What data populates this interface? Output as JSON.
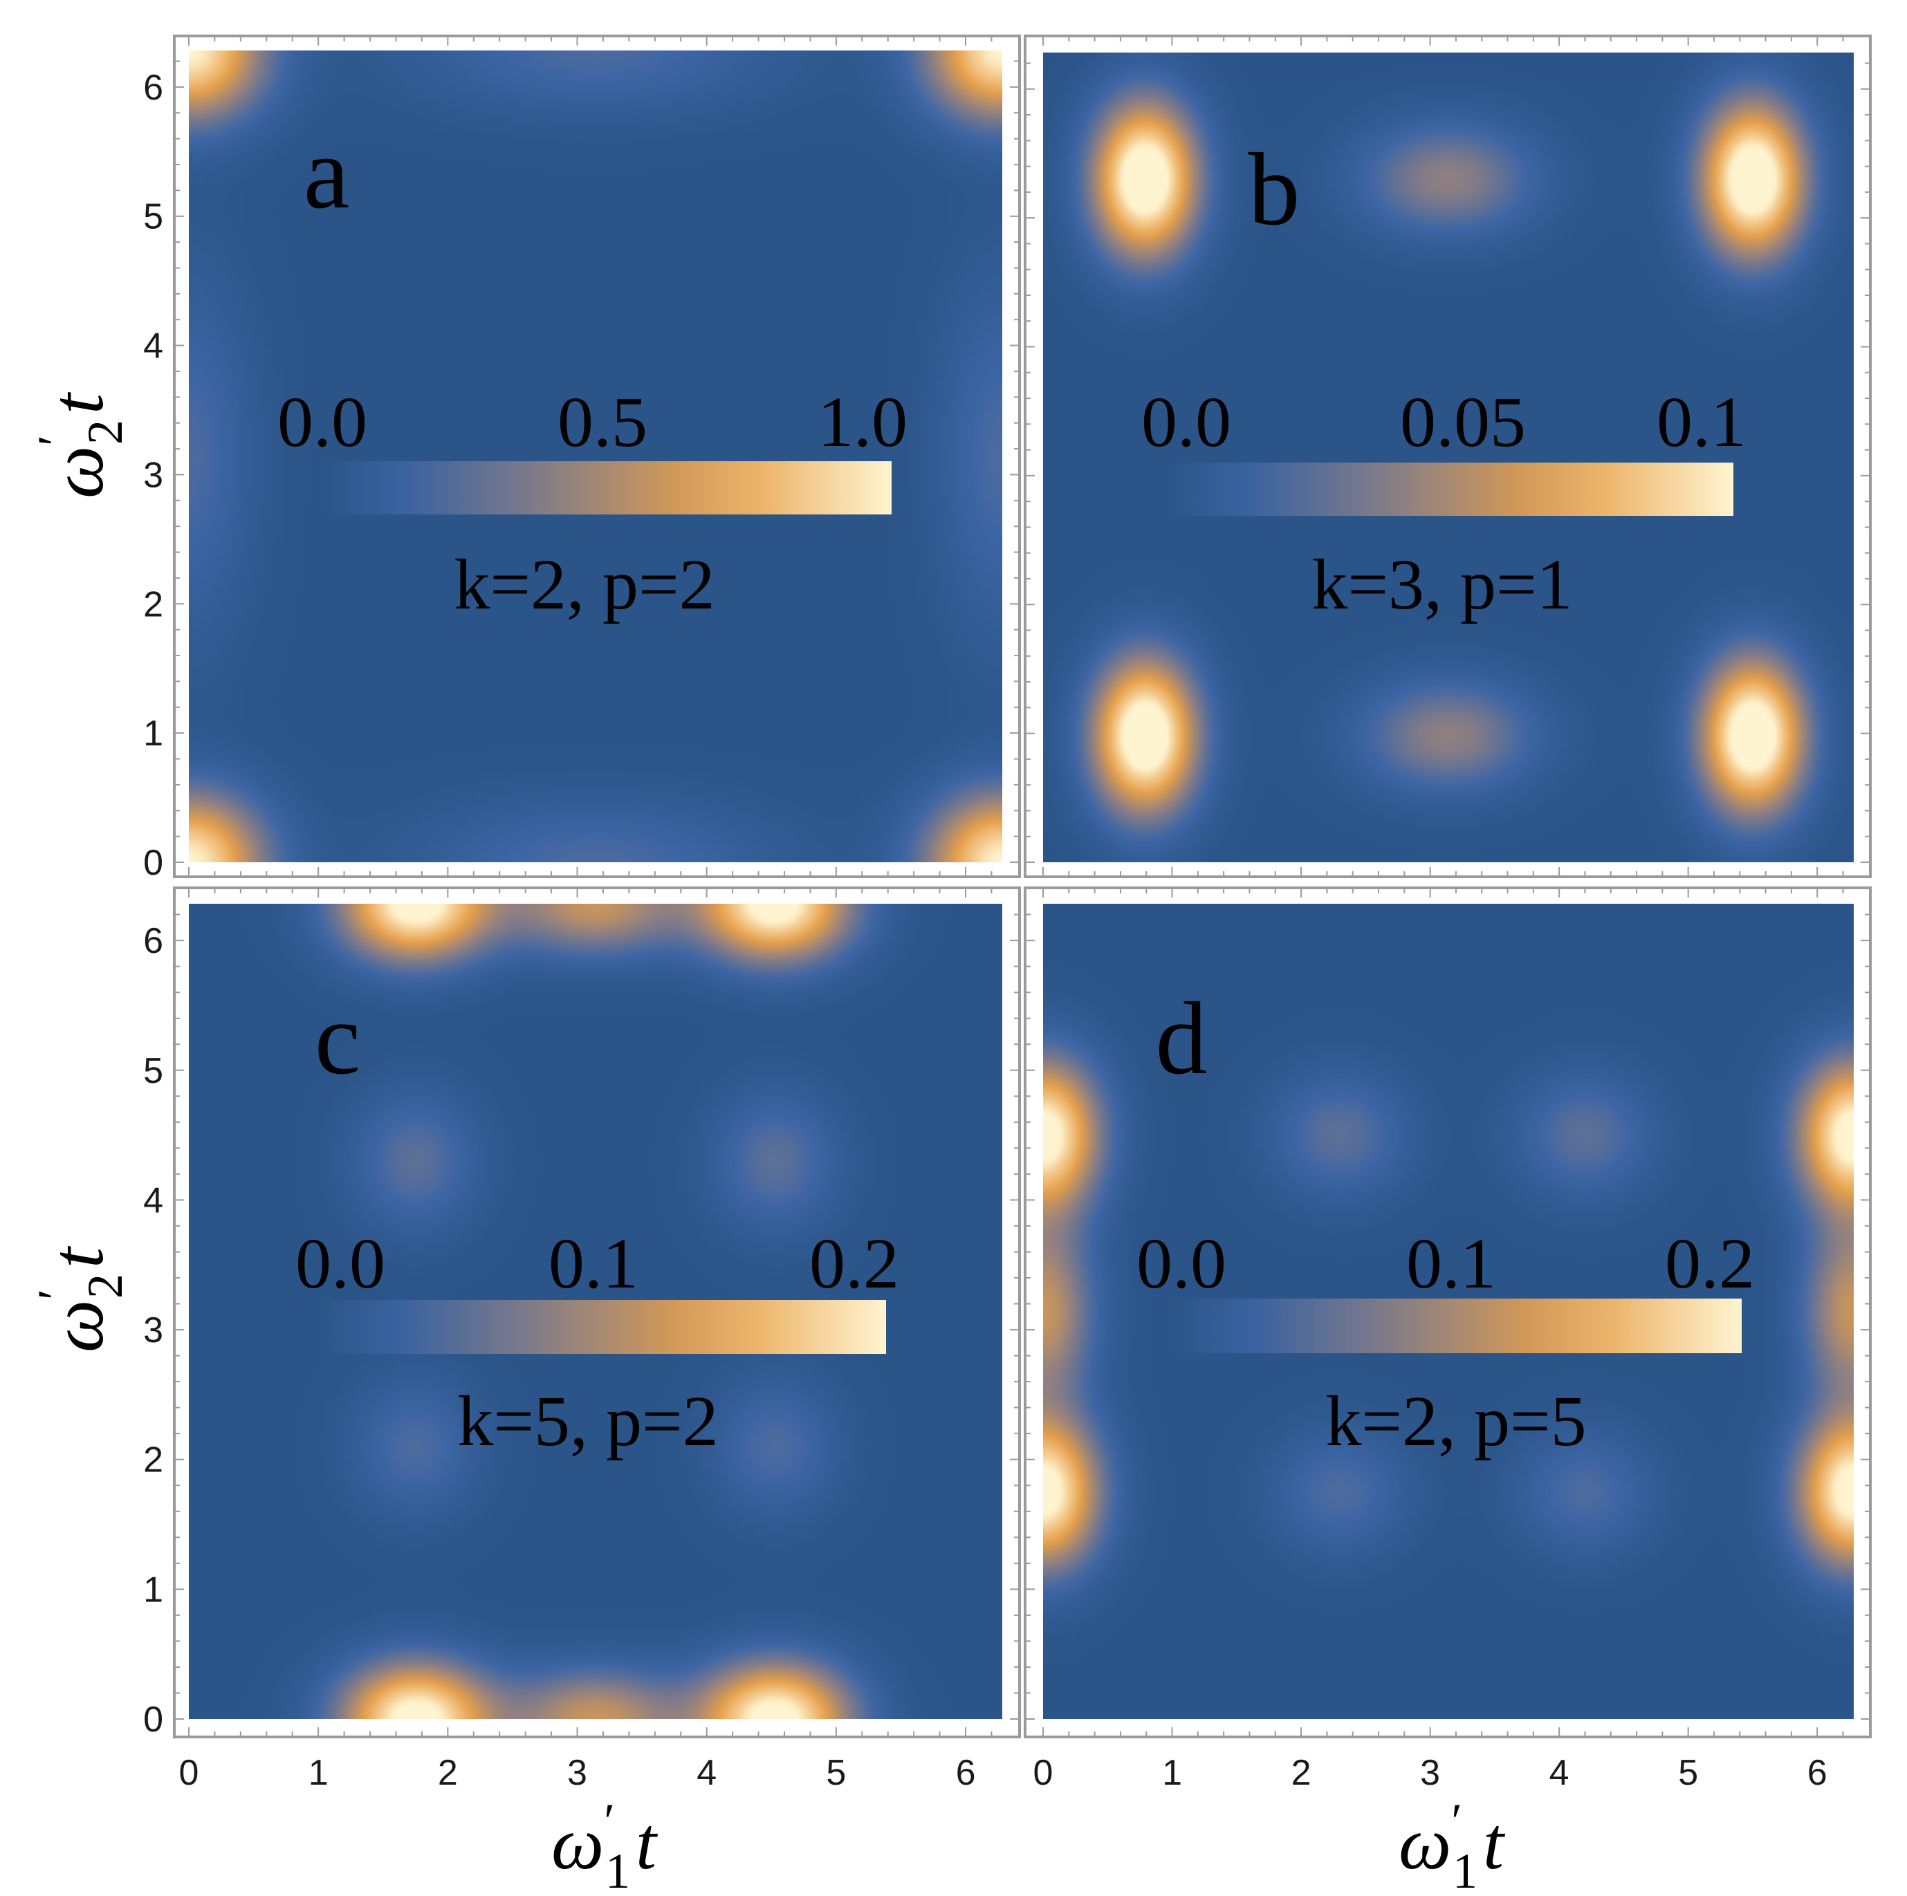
{
  "figure": {
    "x_label": {
      "symbol": "ω",
      "prime": "′",
      "subscript": "1",
      "var": "t"
    },
    "y_label": {
      "symbol": "ω",
      "prime": "′",
      "subscript": "2",
      "var": "t"
    },
    "x_ticks": [
      "0",
      "1",
      "2",
      "3",
      "4",
      "5",
      "6"
    ],
    "y_ticks": [
      "0",
      "1",
      "2",
      "3",
      "4",
      "5",
      "6"
    ],
    "colors": {
      "low": "#2b5589",
      "mid": "#e6a14f",
      "high": "#fff3cc",
      "frame": "#9a9a9a"
    }
  },
  "chart_data": [
    {
      "type": "heatmap",
      "panel": "a",
      "params": "k=2, p=2",
      "colorbar_ticks": [
        "0.0",
        "0.5",
        "1.0"
      ],
      "colorbar_range": [
        0,
        1.0
      ],
      "xlim": [
        0,
        6.283
      ],
      "ylim": [
        0,
        6.283
      ],
      "features": [
        {
          "x": 0.0,
          "y": 6.28,
          "peak": 1.0,
          "sx": 0.6,
          "sy": 0.55
        },
        {
          "x": 6.28,
          "y": 6.28,
          "peak": 1.0,
          "sx": 0.6,
          "sy": 0.55
        },
        {
          "x": 0.0,
          "y": 0.0,
          "peak": 1.0,
          "sx": 0.6,
          "sy": 0.55
        },
        {
          "x": 6.28,
          "y": 0.0,
          "peak": 1.0,
          "sx": 0.6,
          "sy": 0.55
        },
        {
          "x": 3.14,
          "y": 6.28,
          "peak": 0.22,
          "sx": 1.4,
          "sy": 0.5
        },
        {
          "x": 3.14,
          "y": 0.0,
          "peak": 0.22,
          "sx": 1.4,
          "sy": 0.5
        },
        {
          "x": 0.0,
          "y": 3.14,
          "peak": 0.22,
          "sx": 0.5,
          "sy": 1.4
        },
        {
          "x": 6.28,
          "y": 3.14,
          "peak": 0.22,
          "sx": 0.5,
          "sy": 1.4
        }
      ]
    },
    {
      "type": "heatmap",
      "panel": "b",
      "params": "k=3, p=1",
      "colorbar_ticks": [
        "0.0",
        "0.05",
        "0.1"
      ],
      "colorbar_range": [
        0,
        0.1
      ],
      "xlim": [
        0,
        6.283
      ],
      "ylim": [
        0,
        6.283
      ],
      "features": [
        {
          "x": 0.79,
          "y": 5.3,
          "peak": 0.12,
          "sx": 0.42,
          "sy": 0.62
        },
        {
          "x": 5.5,
          "y": 5.3,
          "peak": 0.12,
          "sx": 0.42,
          "sy": 0.62
        },
        {
          "x": 0.79,
          "y": 0.98,
          "peak": 0.12,
          "sx": 0.42,
          "sy": 0.62
        },
        {
          "x": 5.5,
          "y": 0.98,
          "peak": 0.12,
          "sx": 0.42,
          "sy": 0.62
        },
        {
          "x": 3.14,
          "y": 5.3,
          "peak": 0.042,
          "sx": 0.7,
          "sy": 0.45
        },
        {
          "x": 3.14,
          "y": 0.98,
          "peak": 0.042,
          "sx": 0.7,
          "sy": 0.45
        }
      ]
    },
    {
      "type": "heatmap",
      "panel": "c",
      "params": "k=5, p=2",
      "colorbar_ticks": [
        "0.0",
        "0.1",
        "0.2"
      ],
      "colorbar_range": [
        0,
        0.22
      ],
      "xlim": [
        0,
        6.283
      ],
      "ylim": [
        0,
        6.283
      ],
      "features": [
        {
          "x": 1.75,
          "y": 6.28,
          "peak": 0.24,
          "sx": 0.6,
          "sy": 0.45
        },
        {
          "x": 4.53,
          "y": 6.28,
          "peak": 0.24,
          "sx": 0.6,
          "sy": 0.45
        },
        {
          "x": 3.14,
          "y": 6.28,
          "peak": 0.13,
          "sx": 0.7,
          "sy": 0.4
        },
        {
          "x": 1.75,
          "y": 0.0,
          "peak": 0.24,
          "sx": 0.6,
          "sy": 0.45
        },
        {
          "x": 4.53,
          "y": 0.0,
          "peak": 0.24,
          "sx": 0.6,
          "sy": 0.45
        },
        {
          "x": 3.14,
          "y": 0.0,
          "peak": 0.13,
          "sx": 0.7,
          "sy": 0.4
        },
        {
          "x": 1.75,
          "y": 4.3,
          "peak": 0.06,
          "sx": 0.5,
          "sy": 0.55
        },
        {
          "x": 4.53,
          "y": 4.3,
          "peak": 0.06,
          "sx": 0.5,
          "sy": 0.55
        },
        {
          "x": 1.75,
          "y": 2.1,
          "peak": 0.05,
          "sx": 0.5,
          "sy": 0.55
        },
        {
          "x": 4.53,
          "y": 2.1,
          "peak": 0.05,
          "sx": 0.5,
          "sy": 0.55
        }
      ]
    },
    {
      "type": "heatmap",
      "panel": "d",
      "params": "k=2, p=5",
      "colorbar_ticks": [
        "0.0",
        "0.1",
        "0.2"
      ],
      "colorbar_range": [
        0,
        0.22
      ],
      "xlim": [
        0,
        6.283
      ],
      "ylim": [
        0,
        6.283
      ],
      "features": [
        {
          "x": 0.0,
          "y": 4.5,
          "peak": 0.24,
          "sx": 0.45,
          "sy": 0.6
        },
        {
          "x": 0.0,
          "y": 1.75,
          "peak": 0.24,
          "sx": 0.45,
          "sy": 0.6
        },
        {
          "x": 0.0,
          "y": 3.14,
          "peak": 0.13,
          "sx": 0.4,
          "sy": 0.7
        },
        {
          "x": 6.28,
          "y": 4.5,
          "peak": 0.24,
          "sx": 0.45,
          "sy": 0.6
        },
        {
          "x": 6.28,
          "y": 1.75,
          "peak": 0.24,
          "sx": 0.45,
          "sy": 0.6
        },
        {
          "x": 6.28,
          "y": 3.14,
          "peak": 0.13,
          "sx": 0.4,
          "sy": 0.7
        },
        {
          "x": 2.3,
          "y": 4.5,
          "peak": 0.06,
          "sx": 0.55,
          "sy": 0.5
        },
        {
          "x": 4.2,
          "y": 4.5,
          "peak": 0.06,
          "sx": 0.55,
          "sy": 0.5
        },
        {
          "x": 2.3,
          "y": 1.75,
          "peak": 0.05,
          "sx": 0.55,
          "sy": 0.5
        },
        {
          "x": 4.2,
          "y": 1.75,
          "peak": 0.05,
          "sx": 0.55,
          "sy": 0.5
        }
      ]
    }
  ]
}
